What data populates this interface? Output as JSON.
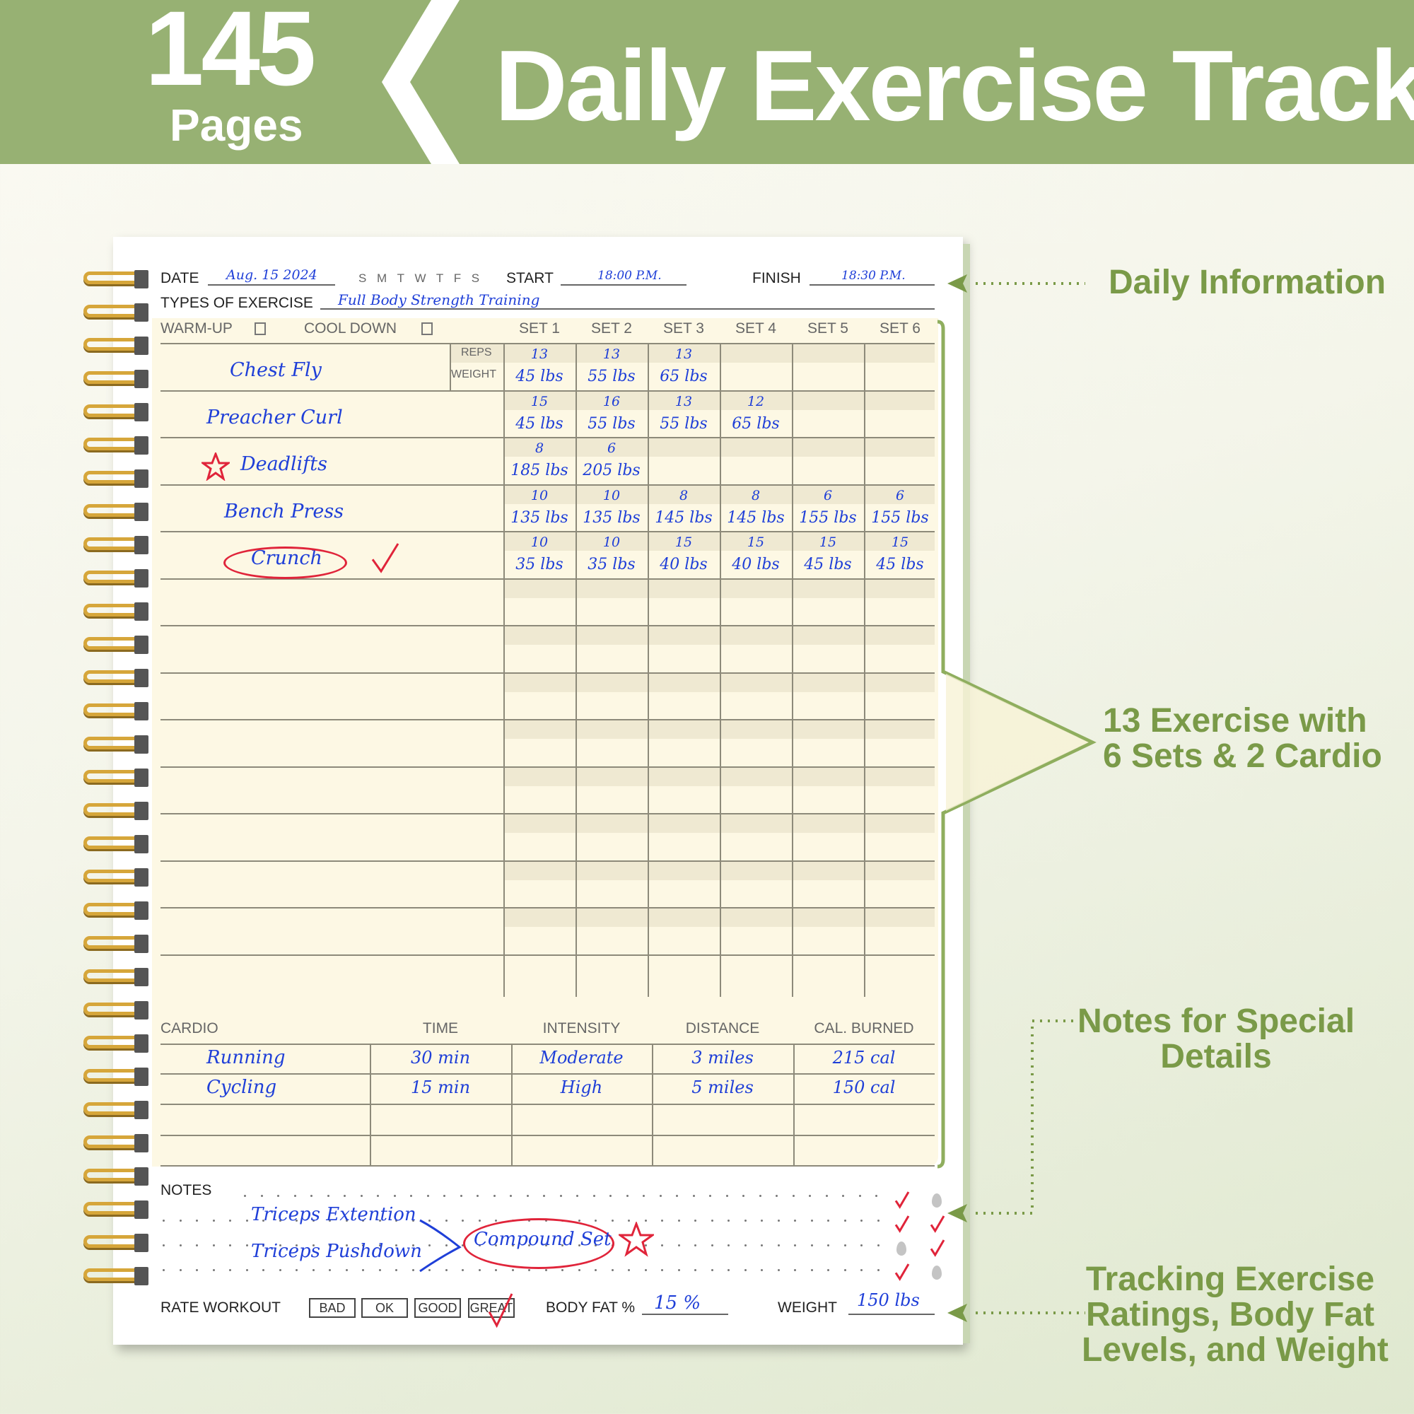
{
  "banner": {
    "count": "145",
    "pages_label": "Pages",
    "title": "Daily Exercise Track",
    "color": "#97b173"
  },
  "header": {
    "date_label": "DATE",
    "date_value": "Aug. 15 2024",
    "weekdays": "S M T W T F S",
    "start_label": "START",
    "start_value": "18:00 P.M.",
    "finish_label": "FINISH",
    "finish_value": "18:30 P.M.",
    "types_label": "TYPES OF EXERCISE",
    "types_value": "Full Body Strength Training"
  },
  "table": {
    "warmup_label": "WARM-UP",
    "cooldown_label": "COOL DOWN",
    "sets": [
      "SET 1",
      "SET 2",
      "SET 3",
      "SET 4",
      "SET 5",
      "SET 6"
    ],
    "reps_label": "REPS",
    "weight_label": "WEIGHT",
    "exercises": [
      {
        "name": "Chest Fly",
        "reps": [
          "13",
          "13",
          "13",
          "",
          "",
          ""
        ],
        "weights": [
          "45 lbs",
          "55 lbs",
          "65 lbs",
          "",
          "",
          ""
        ]
      },
      {
        "name": "Preacher Curl",
        "reps": [
          "15",
          "16",
          "13",
          "12",
          "",
          ""
        ],
        "weights": [
          "45 lbs",
          "55 lbs",
          "55 lbs",
          "65 lbs",
          "",
          ""
        ]
      },
      {
        "name": "Deadlifts",
        "starred": true,
        "reps": [
          "8",
          "6",
          "",
          "",
          "",
          ""
        ],
        "weights": [
          "185 lbs",
          "205 lbs",
          "",
          "",
          "",
          ""
        ]
      },
      {
        "name": "Bench Press",
        "reps": [
          "10",
          "10",
          "8",
          "8",
          "6",
          "6"
        ],
        "weights": [
          "135 lbs",
          "135 lbs",
          "145 lbs",
          "145 lbs",
          "155 lbs",
          "155 lbs"
        ]
      },
      {
        "name": "Crunch",
        "circled": true,
        "checked": true,
        "reps": [
          "10",
          "10",
          "15",
          "15",
          "15",
          "15"
        ],
        "weights": [
          "35 lbs",
          "35 lbs",
          "40 lbs",
          "40 lbs",
          "45 lbs",
          "45 lbs"
        ]
      }
    ],
    "total_rows": 13
  },
  "cardio": {
    "headers": [
      "CARDIO",
      "TIME",
      "INTENSITY",
      "DISTANCE",
      "CAL. BURNED"
    ],
    "rows": [
      [
        "Running",
        "30 min",
        "Moderate",
        "3 miles",
        "215 cal"
      ],
      [
        "Cycling",
        "15 min",
        "High",
        "5 miles",
        "150 cal"
      ]
    ],
    "total_rows": 4
  },
  "notes": {
    "label": "NOTES",
    "line1": "Triceps Extention",
    "line2": "Triceps Pushdown",
    "circled": "Compound Set",
    "water_checks": [
      [
        true,
        false
      ],
      [
        true,
        true
      ],
      [
        false,
        true
      ],
      [
        true,
        false
      ]
    ]
  },
  "footer": {
    "rate_label": "RATE WORKOUT",
    "ratings": [
      "BAD",
      "OK",
      "GOOD",
      "GREAT"
    ],
    "selected": "GREAT",
    "bodyfat_label": "BODY FAT %",
    "bodyfat_value": "15 %",
    "weight_label": "WEIGHT",
    "weight_value": "150 lbs"
  },
  "annotations": {
    "daily": "Daily Information",
    "exercise_l1": "13 Exercise with",
    "exercise_l2": "6 Sets & 2 Cardio",
    "notes_l1": "Notes for Special",
    "notes_l2": "Details",
    "track_l1": "Tracking Exercise",
    "track_l2": "Ratings, Body Fat",
    "track_l3": "Levels, and Weight",
    "color": "#7a9a48"
  }
}
